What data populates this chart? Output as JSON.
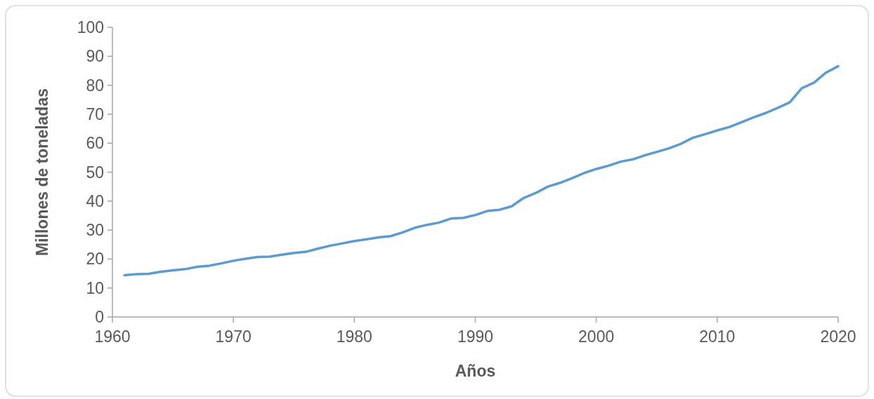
{
  "chart_data": {
    "type": "line",
    "xlabel": "Años",
    "ylabel": "Millones de toneladas",
    "x": [
      1961,
      1962,
      1963,
      1964,
      1965,
      1966,
      1967,
      1968,
      1969,
      1970,
      1971,
      1972,
      1973,
      1974,
      1975,
      1976,
      1977,
      1978,
      1979,
      1980,
      1981,
      1982,
      1983,
      1984,
      1985,
      1986,
      1987,
      1988,
      1989,
      1990,
      1991,
      1992,
      1993,
      1994,
      1995,
      1996,
      1997,
      1998,
      1999,
      2000,
      2001,
      2002,
      2003,
      2004,
      2005,
      2006,
      2007,
      2008,
      2009,
      2010,
      2011,
      2012,
      2013,
      2014,
      2015,
      2016,
      2017,
      2018,
      2019,
      2020
    ],
    "series": [
      {
        "color": "#5b9bd5",
        "values": [
          14.4,
          14.8,
          14.9,
          15.6,
          16.1,
          16.5,
          17.3,
          17.7,
          18.5,
          19.4,
          20.1,
          20.7,
          20.8,
          21.5,
          22.1,
          22.5,
          23.6,
          24.6,
          25.4,
          26.2,
          26.8,
          27.5,
          27.9,
          29.2,
          30.8,
          31.8,
          32.6,
          34.0,
          34.2,
          35.2,
          36.6,
          37.0,
          38.2,
          41.1,
          42.8,
          45.0,
          46.3,
          47.9,
          49.7,
          51.1,
          52.2,
          53.6,
          54.4,
          55.8,
          57.0,
          58.2,
          59.8,
          61.9,
          63.1,
          64.4,
          65.6,
          67.2,
          68.9,
          70.4,
          72.2,
          74.1,
          79.0,
          80.9,
          84.4,
          86.6
        ]
      }
    ],
    "xlim": [
      1960,
      2020
    ],
    "xticks": [
      1960,
      1970,
      1980,
      1990,
      2000,
      2010,
      2020
    ],
    "ylim": [
      0,
      100
    ],
    "yticks": [
      0,
      10,
      20,
      30,
      40,
      50,
      60,
      70,
      80,
      90,
      100
    ],
    "grid": false,
    "marker": "none",
    "line_style": "solid"
  }
}
